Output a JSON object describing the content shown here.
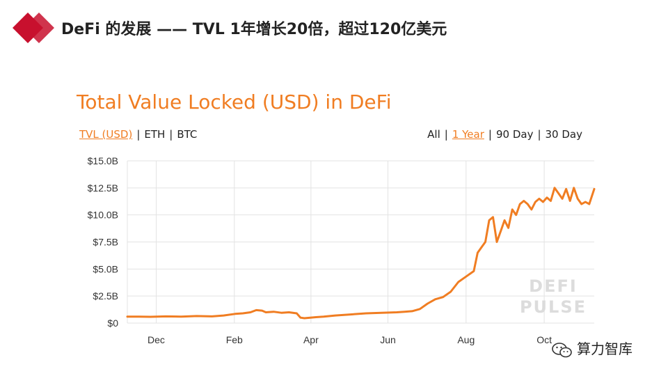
{
  "slide": {
    "title": "DeFi 的发展 —— TVL 1年增长20倍，超过120亿美元"
  },
  "colors": {
    "accent": "#f07d22",
    "brand_red": "#c8102e",
    "grid": "#e3e3e3",
    "axis_text": "#333333"
  },
  "metric_tabs": [
    {
      "label": "TVL (USD)",
      "active": true
    },
    {
      "label": "ETH",
      "active": false
    },
    {
      "label": "BTC",
      "active": false
    }
  ],
  "range_tabs": [
    {
      "label": "All",
      "active": false
    },
    {
      "label": "1 Year",
      "active": true
    },
    {
      "label": "90 Day",
      "active": false
    },
    {
      "label": "30 Day",
      "active": false
    }
  ],
  "watermark": {
    "icon": "wechat-icon",
    "text": "算力智库"
  },
  "chart_data": {
    "type": "line",
    "title": "Total Value Locked (USD) in DeFi",
    "xlabel": "",
    "ylabel": "",
    "ylim": [
      0,
      15
    ],
    "xlim": [
      0,
      12.13
    ],
    "y_ticks": [
      {
        "value": 0,
        "label": "$0"
      },
      {
        "value": 2.5,
        "label": "$2.5B"
      },
      {
        "value": 5,
        "label": "$5.0B"
      },
      {
        "value": 7.5,
        "label": "$7.5B"
      },
      {
        "value": 10,
        "label": "$10.0B"
      },
      {
        "value": 12.5,
        "label": "$12.5B"
      },
      {
        "value": 15,
        "label": "$15.0B"
      }
    ],
    "x_ticks": [
      {
        "value": 0.75,
        "label": "Dec"
      },
      {
        "value": 2.78,
        "label": "Feb"
      },
      {
        "value": 4.77,
        "label": "Apr"
      },
      {
        "value": 6.77,
        "label": "Jun"
      },
      {
        "value": 8.8,
        "label": "Aug"
      },
      {
        "value": 10.83,
        "label": "Oct"
      }
    ],
    "grid": true,
    "watermark_text": [
      "DEFI",
      "PULSE"
    ],
    "series": [
      {
        "color": "#f07d22",
        "x": [
          0,
          0.3,
          0.6,
          1.0,
          1.4,
          1.8,
          2.2,
          2.5,
          2.8,
          3.0,
          3.2,
          3.35,
          3.5,
          3.6,
          3.8,
          4.0,
          4.2,
          4.4,
          4.5,
          4.6,
          4.75,
          4.9,
          5.1,
          5.4,
          5.8,
          6.2,
          6.6,
          7.0,
          7.2,
          7.4,
          7.6,
          7.8,
          8.0,
          8.2,
          8.4,
          8.6,
          8.8,
          9.0,
          9.1,
          9.2,
          9.3,
          9.4,
          9.5,
          9.6,
          9.7,
          9.8,
          9.9,
          10.0,
          10.1,
          10.2,
          10.3,
          10.4,
          10.5,
          10.6,
          10.7,
          10.8,
          10.9,
          11.0,
          11.1,
          11.2,
          11.3,
          11.4,
          11.5,
          11.6,
          11.7,
          11.8,
          11.9,
          12.0,
          12.13
        ],
        "values": [
          0.6,
          0.6,
          0.58,
          0.62,
          0.6,
          0.65,
          0.62,
          0.7,
          0.85,
          0.9,
          1.0,
          1.2,
          1.15,
          1.0,
          1.05,
          0.95,
          1.0,
          0.9,
          0.5,
          0.45,
          0.5,
          0.55,
          0.6,
          0.7,
          0.8,
          0.9,
          0.95,
          1.0,
          1.05,
          1.1,
          1.3,
          1.8,
          2.2,
          2.4,
          2.9,
          3.8,
          4.3,
          4.8,
          6.5,
          7.0,
          7.5,
          9.5,
          9.8,
          7.5,
          8.5,
          9.5,
          8.8,
          10.5,
          10.0,
          11.0,
          11.3,
          11.0,
          10.5,
          11.2,
          11.5,
          11.2,
          11.6,
          11.3,
          12.5,
          12.0,
          11.5,
          12.4,
          11.3,
          12.5,
          11.5,
          11.0,
          11.2,
          11.0,
          12.4
        ]
      }
    ]
  }
}
